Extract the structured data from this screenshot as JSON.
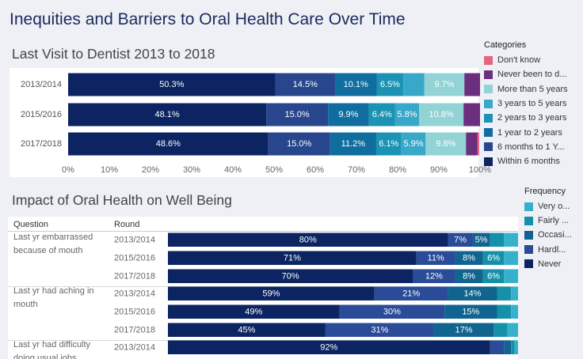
{
  "page": {
    "title": "Inequities and Barriers to Oral Health Care Over Time"
  },
  "colors": {
    "dont_know": "#e8637e",
    "never_been": "#6b2f7e",
    "more_than_5": "#92d3d5",
    "y3_5": "#38a8c9",
    "y2_3": "#1a93b4",
    "y1_2": "#0f6e9f",
    "m6_1y": "#27468d",
    "within_6m": "#0c2461",
    "f_very": "#35b1cc",
    "f_fairly": "#1590a9",
    "f_occasionally": "#10648f",
    "f_hardly": "#2a4b98",
    "f_never": "#0c2461"
  },
  "chart_data": [
    {
      "type": "bar",
      "stacked": true,
      "orientation": "horizontal",
      "title": "Last Visit to Dentist 2013 to 2018",
      "categories": [
        "2013/2014",
        "2015/2016",
        "2017/2018"
      ],
      "xlim": [
        0,
        100
      ],
      "ticks": [
        "0%",
        "10%",
        "20%",
        "30%",
        "40%",
        "50%",
        "60%",
        "70%",
        "80%",
        "90%",
        "100%"
      ],
      "legend_title": "Categories",
      "legend": [
        "Don't know",
        "Never been to d...",
        "More than 5 years",
        "3 years to 5 years",
        "2 years to 3 years",
        "1 year to 2 years",
        "6 months to 1 Y...",
        "Within 6 months"
      ],
      "series": [
        {
          "name": "Within 6 months",
          "color_key": "within_6m",
          "values": [
            50.3,
            48.1,
            48.6
          ],
          "labels": [
            "50.3%",
            "48.1%",
            "48.6%"
          ]
        },
        {
          "name": "6 months to 1 Year",
          "color_key": "m6_1y",
          "values": [
            14.5,
            15.0,
            15.0
          ],
          "labels": [
            "14.5%",
            "15.0%",
            "15.0%"
          ]
        },
        {
          "name": "1 year to 2 years",
          "color_key": "y1_2",
          "values": [
            10.1,
            9.9,
            11.2
          ],
          "labels": [
            "10.1%",
            "9.9%",
            "11.2%"
          ]
        },
        {
          "name": "2 years to 3 years",
          "color_key": "y2_3",
          "values": [
            6.5,
            6.4,
            6.1
          ],
          "labels": [
            "6.5%",
            "6.4%",
            "6.1%"
          ]
        },
        {
          "name": "3 years to 5 years",
          "color_key": "y3_5",
          "values": [
            5.1,
            5.8,
            5.9
          ],
          "labels": [
            "",
            "5.8%",
            "5.9%"
          ]
        },
        {
          "name": "More than 5 years",
          "color_key": "more_than_5",
          "values": [
            9.7,
            10.8,
            9.8
          ],
          "labels": [
            "9.7%",
            "10.8%",
            "9.8%"
          ]
        },
        {
          "name": "Never been to dentist",
          "color_key": "never_been",
          "values": [
            3.8,
            4.0,
            2.8
          ],
          "labels": [
            "",
            "",
            ""
          ]
        },
        {
          "name": "Don't know",
          "color_key": "dont_know",
          "values": [
            0,
            0,
            0.4
          ],
          "labels": [
            "",
            "",
            ""
          ]
        }
      ]
    },
    {
      "type": "bar",
      "stacked": true,
      "orientation": "horizontal",
      "title": "Impact of Oral Health on Well Being",
      "column_headers": [
        "Question",
        "Round"
      ],
      "groups": [
        {
          "question": "Last yr embarrassed because of mouth",
          "rounds": [
            "2013/2014",
            "2015/2016",
            "2017/2018"
          ]
        },
        {
          "question": "Last yr had aching in mouth",
          "rounds": [
            "2013/2014",
            "2015/2016",
            "2017/2018"
          ]
        },
        {
          "question": "Last yr had difficulty doing usual jobs because of mouth",
          "rounds": [
            "2013/2014"
          ]
        }
      ],
      "legend_title": "Frequency",
      "legend": [
        "Very o...",
        "Fairly ...",
        "Occasi...",
        "Hardl...",
        "Never"
      ],
      "series": [
        {
          "name": "Never",
          "color_key": "f_never",
          "values": [
            80,
            71,
            70,
            59,
            49,
            45,
            92
          ],
          "labels": [
            "80%",
            "71%",
            "70%",
            "59%",
            "49%",
            "45%",
            "92%"
          ]
        },
        {
          "name": "Hardly ever",
          "color_key": "f_hardly",
          "values": [
            7,
            11,
            12,
            21,
            30,
            31,
            4
          ],
          "labels": [
            "7%",
            "11%",
            "12%",
            "21%",
            "30%",
            "31%",
            "4%"
          ]
        },
        {
          "name": "Occasionally",
          "color_key": "f_occasionally",
          "values": [
            5,
            8,
            8,
            14,
            15,
            17,
            2
          ],
          "labels": [
            "5%",
            "8%",
            "8%",
            "14%",
            "15%",
            "17%",
            ""
          ]
        },
        {
          "name": "Fairly often",
          "color_key": "f_fairly",
          "values": [
            4,
            6,
            6,
            4,
            4,
            4,
            1
          ],
          "labels": [
            "4%",
            "6%",
            "6%",
            "",
            "",
            "4%",
            ""
          ]
        },
        {
          "name": "Very often",
          "color_key": "f_very",
          "values": [
            4,
            4,
            4,
            2,
            2,
            3,
            1
          ],
          "labels": [
            "",
            "",
            "",
            "",
            "",
            "",
            ""
          ]
        }
      ]
    }
  ]
}
